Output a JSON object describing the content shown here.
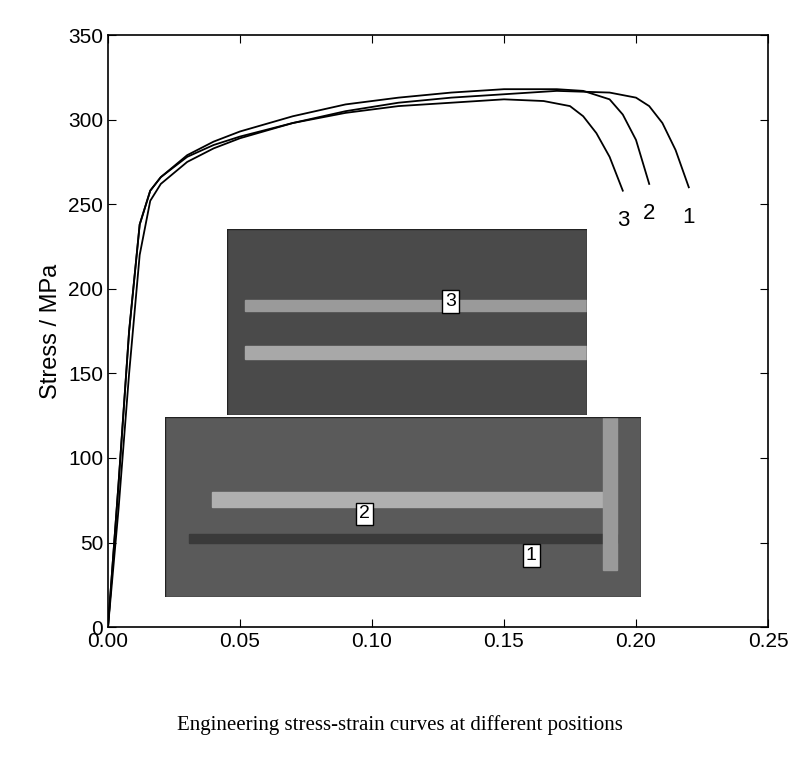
{
  "chart_data": {
    "type": "line",
    "caption": "Engineering stress-strain curves at different positions",
    "y_label": "Stress / MPa",
    "xlim": [
      0.0,
      0.25
    ],
    "xticks": [
      {
        "value": 0.0,
        "label": "0.00"
      },
      {
        "value": 0.05,
        "label": "0.05"
      },
      {
        "value": 0.1,
        "label": "0.10"
      },
      {
        "value": 0.15,
        "label": "0.15"
      },
      {
        "value": 0.2,
        "label": "0.20"
      },
      {
        "value": 0.25,
        "label": "0.25"
      }
    ],
    "ylim": [
      0,
      350
    ],
    "yticks": [
      0,
      50,
      100,
      150,
      200,
      250,
      300,
      350
    ],
    "grid": false,
    "photo_labels": [
      "3",
      "2",
      "1"
    ],
    "series": [
      {
        "name": "1",
        "color": "#000000",
        "x": [
          0.0,
          0.004,
          0.008,
          0.012,
          0.016,
          0.02,
          0.03,
          0.04,
          0.05,
          0.07,
          0.09,
          0.11,
          0.13,
          0.15,
          0.17,
          0.19,
          0.2,
          0.205,
          0.21,
          0.215,
          0.22
        ],
        "values": [
          0,
          70,
          150,
          220,
          252,
          262,
          275,
          283,
          289,
          298,
          305,
          310,
          313,
          315,
          317,
          316,
          313,
          308,
          298,
          282,
          260
        ]
      },
      {
        "name": "2",
        "color": "#000000",
        "x": [
          0.0,
          0.004,
          0.008,
          0.012,
          0.016,
          0.02,
          0.03,
          0.04,
          0.05,
          0.07,
          0.09,
          0.11,
          0.13,
          0.15,
          0.17,
          0.18,
          0.19,
          0.195,
          0.2,
          0.205
        ],
        "values": [
          0,
          85,
          175,
          238,
          258,
          266,
          279,
          287,
          293,
          302,
          309,
          313,
          316,
          318,
          318,
          317,
          312,
          303,
          288,
          262
        ]
      },
      {
        "name": "3",
        "color": "#000000",
        "x": [
          0.0,
          0.004,
          0.008,
          0.012,
          0.016,
          0.02,
          0.03,
          0.04,
          0.05,
          0.07,
          0.09,
          0.11,
          0.13,
          0.15,
          0.165,
          0.175,
          0.18,
          0.185,
          0.19,
          0.195
        ],
        "values": [
          0,
          85,
          175,
          238,
          258,
          266,
          278,
          285,
          290,
          298,
          304,
          308,
          310,
          312,
          311,
          308,
          302,
          292,
          278,
          258
        ]
      }
    ]
  }
}
